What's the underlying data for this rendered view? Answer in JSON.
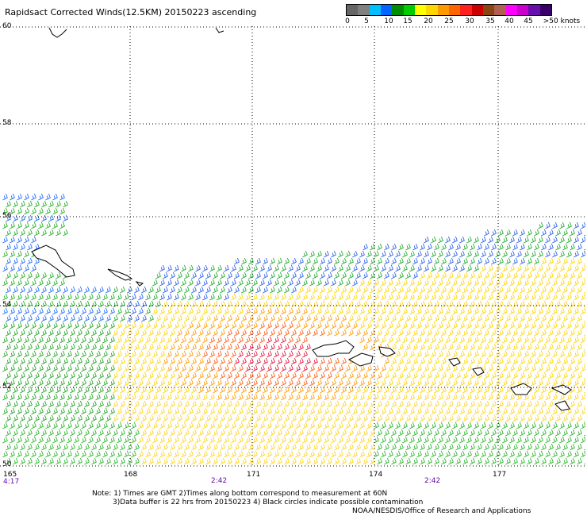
{
  "title": "Rapidsact Corrected Winds(12.5KM) 20150223 ascending",
  "legend": {
    "colors": [
      "#666666",
      "#808080",
      "#00bfff",
      "#0066ff",
      "#008c00",
      "#00cc00",
      "#ffff00",
      "#ffd700",
      "#ff9900",
      "#ff6600",
      "#ff2020",
      "#cc0000",
      "#8b4513",
      "#b06050",
      "#ff00ff",
      "#cc00cc",
      "#6a0dad",
      "#3a006a"
    ],
    "labels": [
      "0",
      "5",
      "10",
      "15",
      "20",
      "25",
      "30",
      "35",
      "40",
      "45",
      ">50 knots"
    ]
  },
  "map": {
    "lat_labels": [
      "60",
      "58",
      "56",
      "54",
      "52",
      "50"
    ],
    "lon_labels": [
      "165",
      "168",
      "171",
      "174",
      "177"
    ],
    "time_labels": [
      "4:17",
      "2:42",
      "2:42"
    ]
  },
  "notes": {
    "line1": "Note: 1) Times are GMT 2)Times along bottom correspond to measurement at 60N",
    "line2": "3)Data buffer is 22 hrs from 20150223 4) Black circles indicate possible contamination",
    "line3": "NOAA/NESDIS/Office of Research and Applications"
  }
}
